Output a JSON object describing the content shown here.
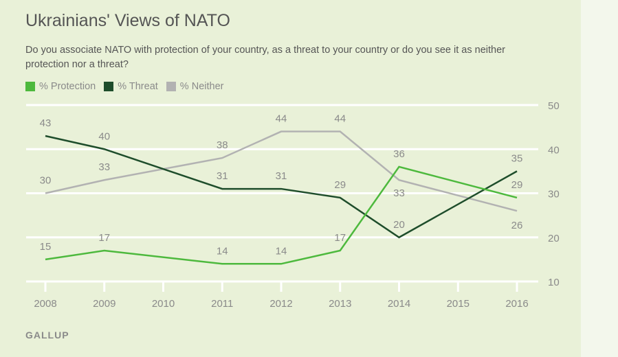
{
  "title": "Ukrainians' Views of NATO",
  "subtitle": "Do you associate NATO with protection of your country, as a threat to your country or do you see it as neither protection nor a threat?",
  "source": "GALLUP",
  "chart_data": {
    "type": "line",
    "title": "Ukrainians' Views of NATO",
    "x_ticks": [
      2008,
      2009,
      2010,
      2011,
      2012,
      2013,
      2014,
      2015,
      2016
    ],
    "y_ticks": [
      10,
      20,
      30,
      40,
      50
    ],
    "ylim": [
      10,
      50
    ],
    "xlim": [
      2008,
      2016
    ],
    "grid": "horizontal",
    "y_axis_side": "right",
    "legend_placement": "top-left",
    "series": [
      {
        "name": "% Protection",
        "color": "#4db93d",
        "x": [
          2008,
          2009,
          2011,
          2012,
          2013,
          2014,
          2016
        ],
        "values": [
          15,
          17,
          14,
          14,
          17,
          36,
          29
        ]
      },
      {
        "name": "% Threat",
        "color": "#1e4d2b",
        "x": [
          2008,
          2009,
          2011,
          2012,
          2013,
          2014,
          2016
        ],
        "values": [
          43,
          40,
          31,
          31,
          29,
          20,
          35
        ]
      },
      {
        "name": "% Neither",
        "color": "#b2b2b2",
        "x": [
          2008,
          2009,
          2011,
          2012,
          2013,
          2014,
          2016
        ],
        "values": [
          30,
          33,
          38,
          44,
          44,
          33,
          26
        ]
      }
    ]
  }
}
